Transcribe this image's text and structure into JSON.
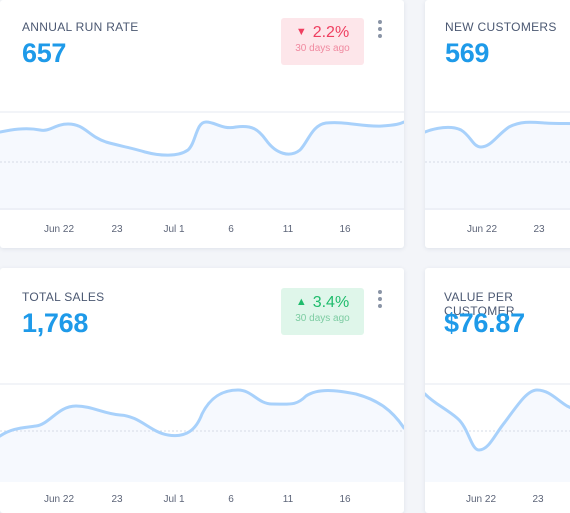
{
  "cards": {
    "annual_run_rate": {
      "title": "ANNUAL RUN RATE",
      "value": "657",
      "badge": {
        "direction": "down",
        "arrow": "▼",
        "change": "2.2%",
        "period": "30 days ago"
      }
    },
    "new_customers": {
      "title": "NEW CUSTOMERS",
      "value": "569"
    },
    "total_sales": {
      "title": "TOTAL SALES",
      "value": "1,768",
      "badge": {
        "direction": "up",
        "arrow": "▲",
        "change": "3.4%",
        "period": "30 days ago"
      }
    },
    "value_per_customer": {
      "title": "VALUE PER CUSTOMER",
      "value": "$76.87"
    }
  },
  "x_ticks_full": [
    "Jun 22",
    "23",
    "Jul 1",
    "6",
    "11",
    "16"
  ],
  "x_ticks_partial": [
    "Jun 22",
    "23"
  ],
  "colors": {
    "accent": "#1e9ae9",
    "line": "#a8d1fb",
    "area": "#f6f9fe",
    "down": "#ef3f60",
    "up": "#1fbc6c"
  },
  "icons": {
    "menu": "kebab-menu-icon",
    "down": "triangle-down-icon",
    "up": "triangle-up-icon"
  }
}
